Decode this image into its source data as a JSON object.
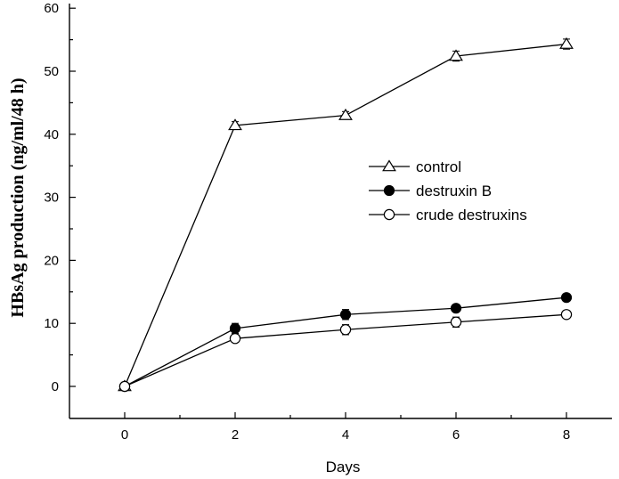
{
  "chart_data": {
    "type": "line",
    "xlabel": "Days",
    "ylabel": "HBsAg production (ng/ml/48 h)",
    "xlim": [
      -1,
      11
    ],
    "ylim": [
      0,
      60
    ],
    "x_ticks": [
      "0",
      "2",
      "4",
      "6",
      "8"
    ],
    "y_ticks": [
      "0",
      "10",
      "20",
      "30",
      "40",
      "50",
      "60"
    ],
    "x": [
      0,
      2,
      4,
      6,
      8
    ],
    "legend_position": "center-right",
    "grid": false,
    "series": [
      {
        "name": "control",
        "marker": "open-triangle",
        "values": [
          0,
          41.4,
          43.0,
          52.4,
          54.3
        ],
        "errors": [
          0.3,
          0.6,
          0.6,
          0.8,
          0.8
        ]
      },
      {
        "name": "destruxin B",
        "marker": "filled-circle",
        "values": [
          0,
          9.2,
          11.4,
          12.4,
          14.1
        ],
        "errors": [
          0.3,
          0.8,
          0.8,
          0.6,
          0.5
        ]
      },
      {
        "name": "crude destruxins",
        "marker": "open-circle",
        "values": [
          0,
          7.6,
          9.0,
          10.2,
          11.4
        ],
        "errors": [
          0.3,
          0.6,
          0.8,
          0.8,
          0.6
        ]
      }
    ]
  }
}
